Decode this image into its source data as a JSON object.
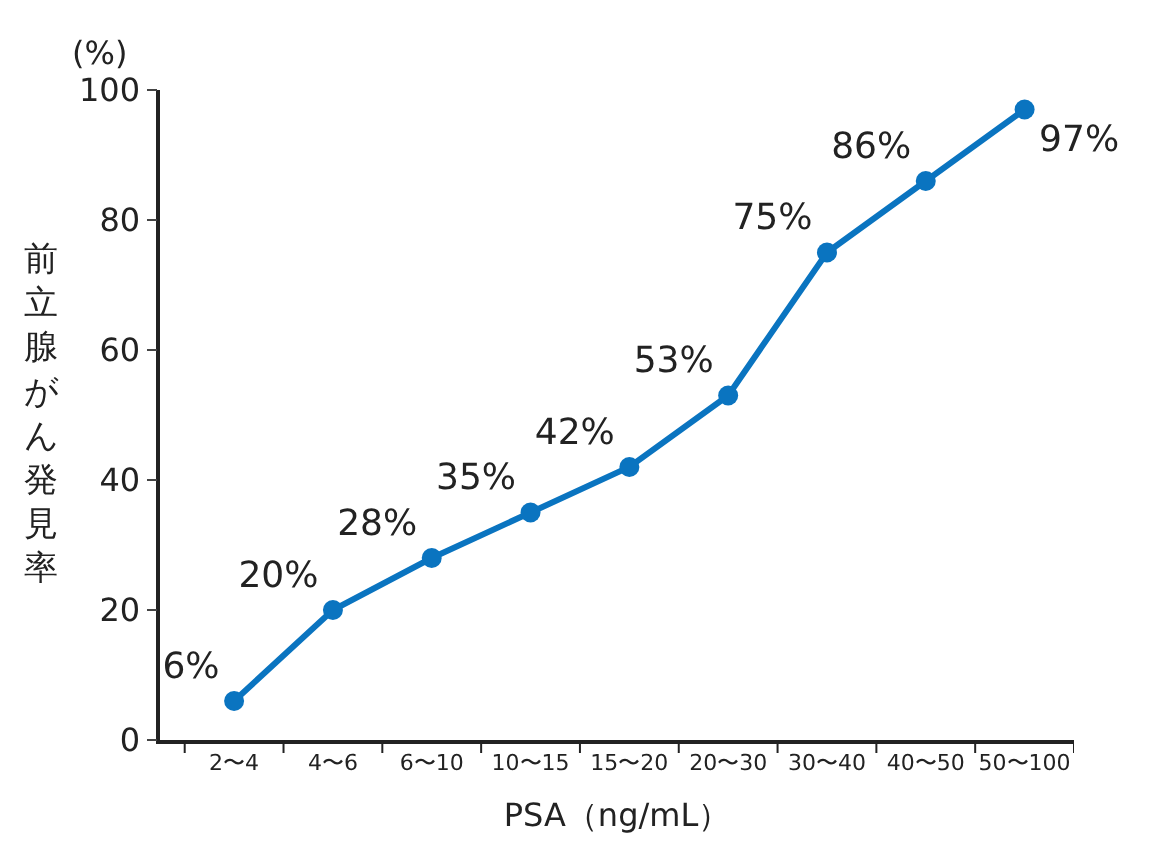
{
  "chart_data": {
    "type": "line",
    "xlabel": "PSA（ng/mL）",
    "ylabel": "前立腺がん発見率",
    "annotations": [
      "(%)"
    ],
    "categories": [
      "2〜4",
      "4〜6",
      "6〜10",
      "10〜15",
      "15〜20",
      "20〜30",
      "30〜40",
      "40〜50",
      "50〜100"
    ],
    "series": [
      {
        "color": "#0a74c0",
        "values": [
          6,
          20,
          28,
          35,
          42,
          53,
          75,
          86,
          97
        ],
        "value_labels": [
          "6%",
          "20%",
          "28%",
          "35%",
          "42%",
          "53%",
          "75%",
          "86%",
          "97%"
        ]
      }
    ],
    "ylim": [
      0,
      100
    ],
    "yticks": [
      0,
      20,
      40,
      60,
      80,
      100
    ],
    "marker": "circle",
    "line_style": "solid",
    "legend": false
  }
}
